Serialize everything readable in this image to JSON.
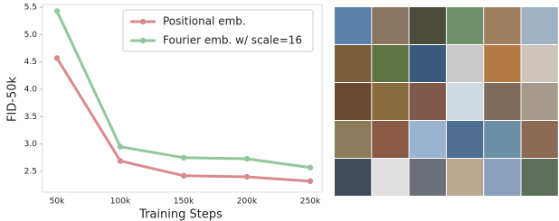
{
  "chart_data": {
    "type": "line",
    "x_label": "Training Steps",
    "y_label": "FID-50k",
    "categories": [
      "50k",
      "100k",
      "150k",
      "200k",
      "250k"
    ],
    "series": [
      {
        "name": "Positional emb.",
        "color": "#d98a8e",
        "values": [
          4.57,
          2.69,
          2.42,
          2.4,
          2.32
        ]
      },
      {
        "name": "Fourier emb. w/ scale=16",
        "color": "#92c79c",
        "values": [
          5.43,
          2.95,
          2.75,
          2.73,
          2.57
        ]
      }
    ],
    "ylim": [
      2.12,
      5.55
    ],
    "yticks": [
      2.5,
      {
        "value": 3,
        "label": "3.0"
      },
      3.5,
      {
        "value": 4,
        "label": "4.0"
      },
      4.5,
      {
        "value": 5,
        "label": "5.0"
      },
      5.5
    ],
    "grid": false,
    "legend": "upper right"
  }
}
